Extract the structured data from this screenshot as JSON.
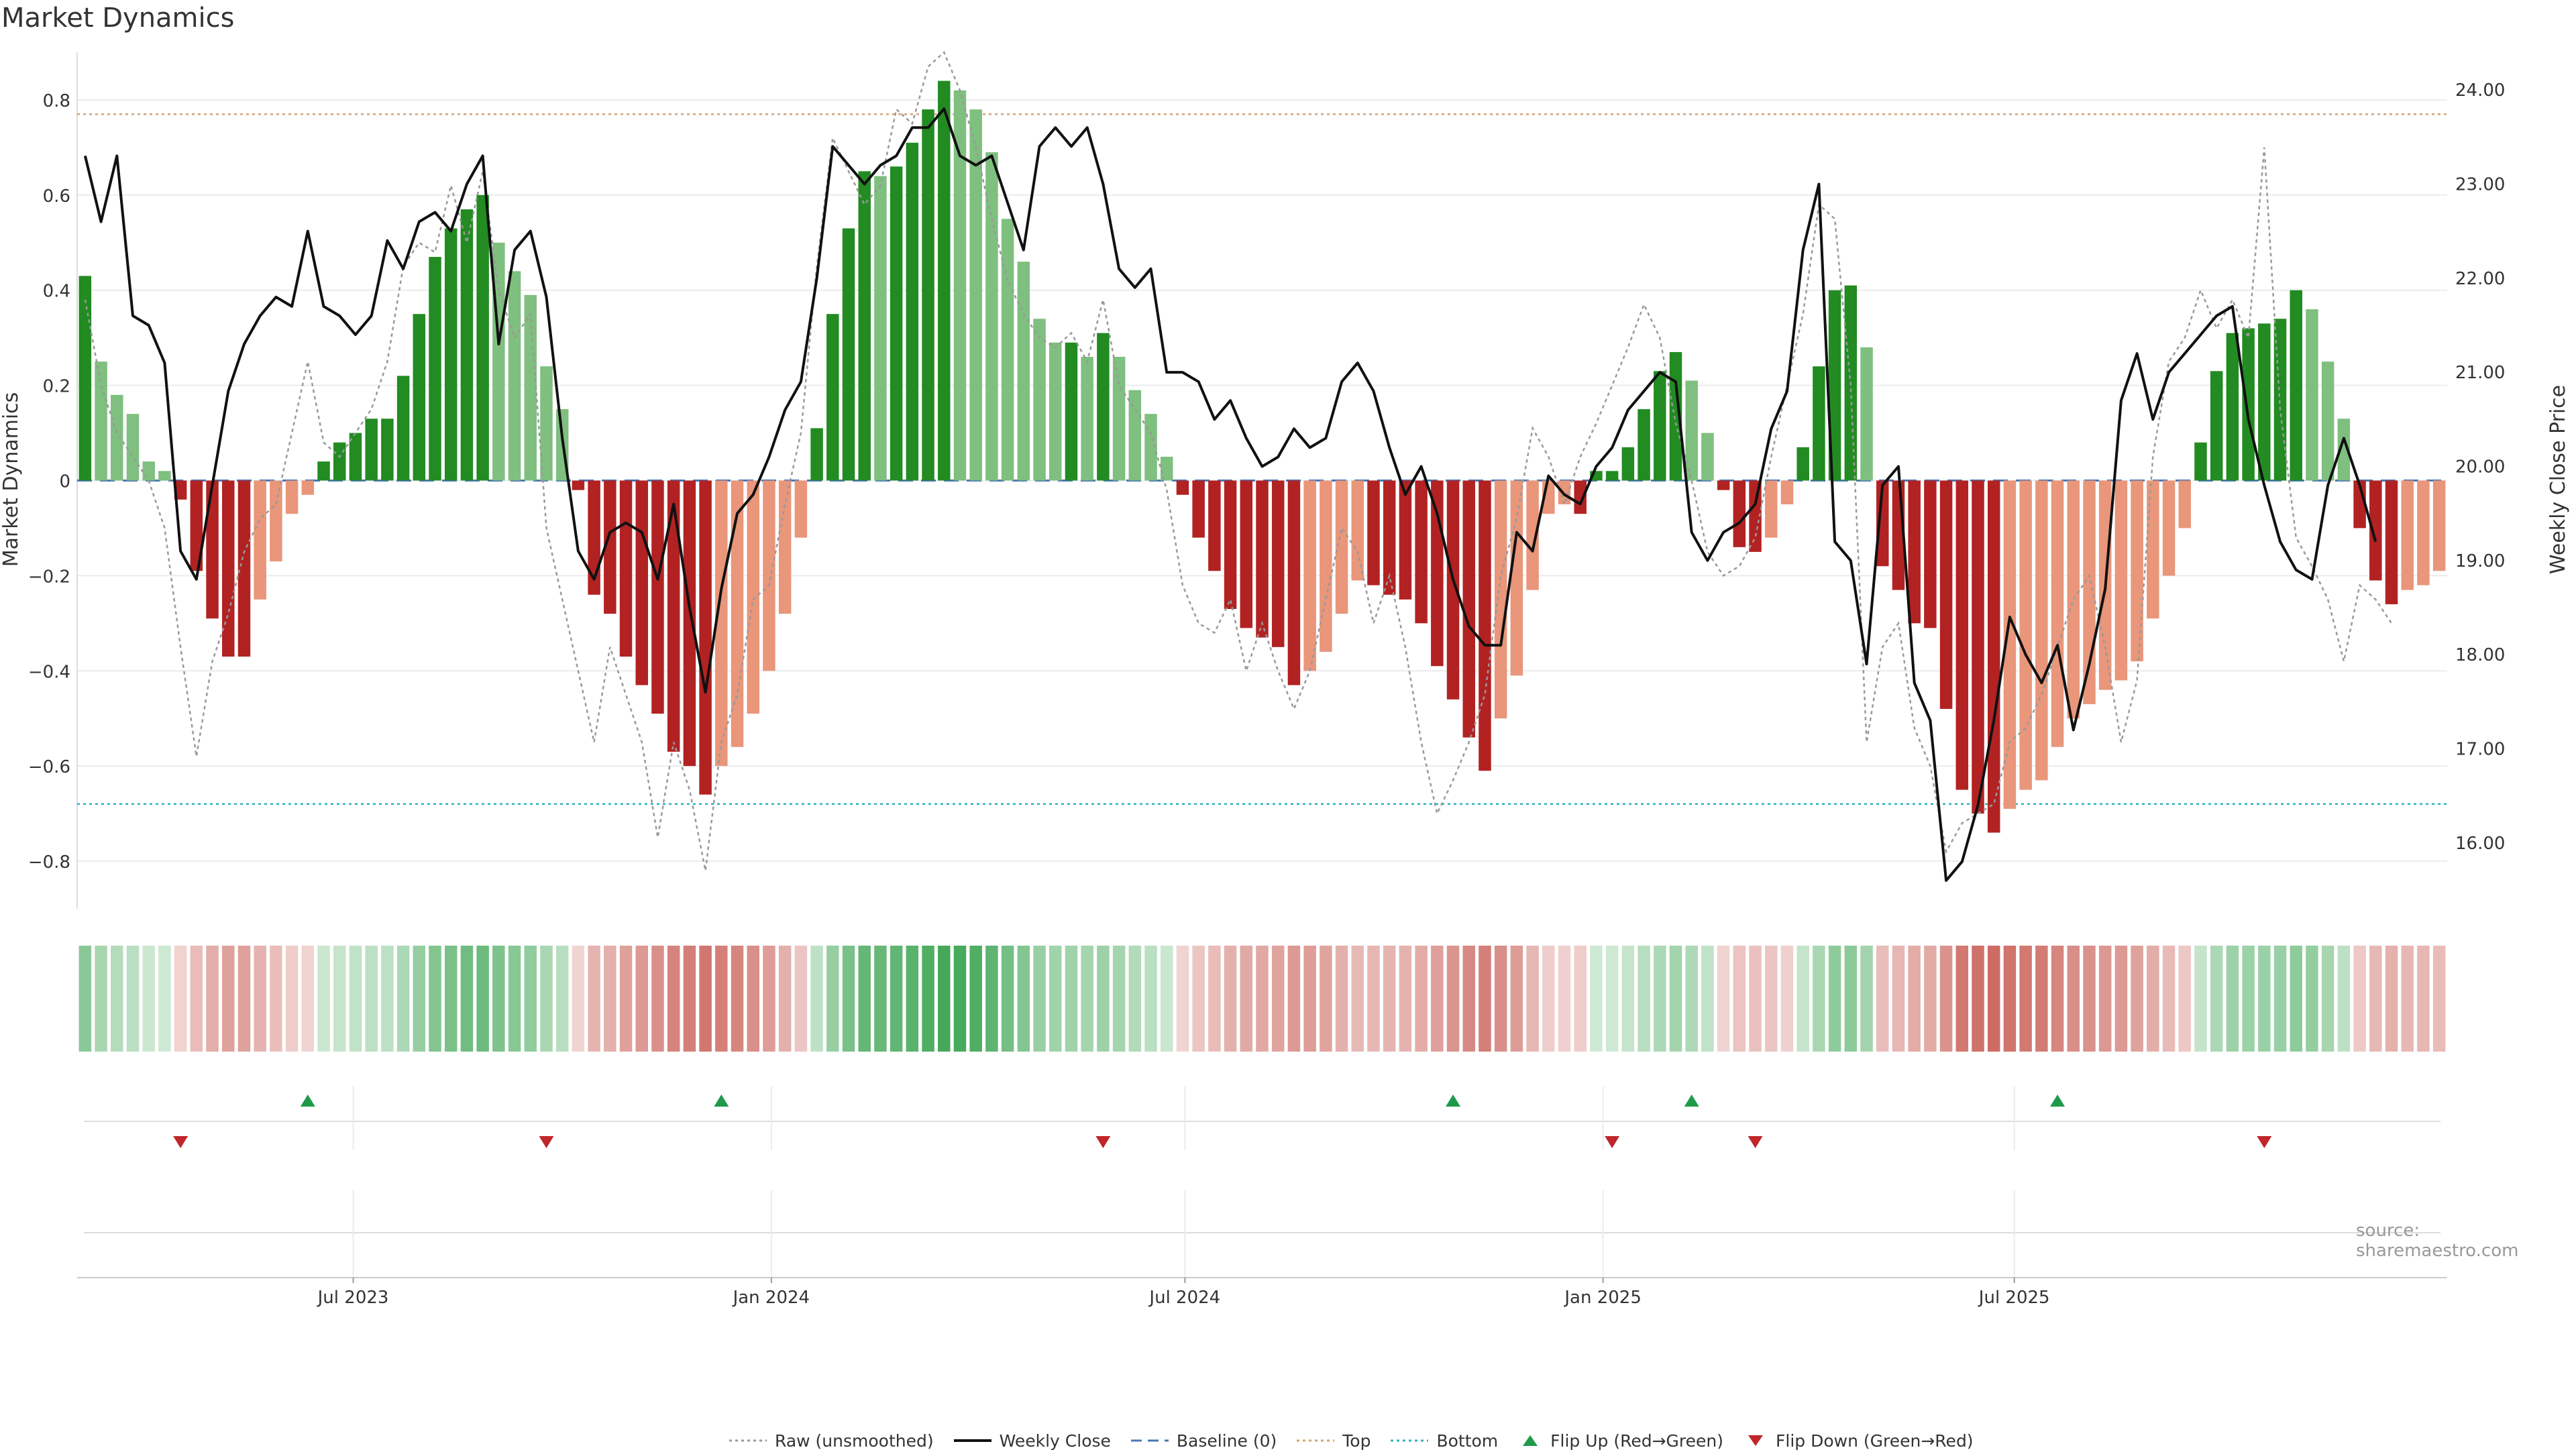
{
  "title": "Market Dynamics",
  "source": "source: sharemaestro.com",
  "chart_data": {
    "type": "bar",
    "ylabel_left": "Market Dynamics",
    "ylabel_right": "Weekly Close Price",
    "ylim_left": [
      -0.9,
      0.9
    ],
    "ylim_right": [
      15.3,
      24.4
    ],
    "yticks_left": [
      "0.8",
      "0.6",
      "0.4",
      "0.2",
      "0",
      "−0.2",
      "−0.4",
      "−0.6",
      "−0.8"
    ],
    "yticks_left_values": [
      0.8,
      0.6,
      0.4,
      0.2,
      0,
      -0.2,
      -0.4,
      -0.6,
      -0.8
    ],
    "yticks_right": [
      "24.00",
      "23.00",
      "22.00",
      "21.00",
      "20.00",
      "19.00",
      "18.00",
      "17.00",
      "16.00"
    ],
    "yticks_right_values": [
      24,
      23,
      22,
      21,
      20,
      19,
      18,
      17,
      16
    ],
    "top_line": 0.77,
    "bottom_line": -0.68,
    "baseline": 0,
    "x_start": "2023-03-05",
    "week_days": 7,
    "x_ticks": [
      {
        "label": "Jul 2023",
        "date": "2023-07-01"
      },
      {
        "label": "Jan 2024",
        "date": "2024-01-01"
      },
      {
        "label": "Jul 2024",
        "date": "2024-07-01"
      },
      {
        "label": "Jan 2025",
        "date": "2025-01-01"
      },
      {
        "label": "Jul 2025",
        "date": "2025-07-01"
      }
    ],
    "market_dynamics": [
      0.43,
      0.25,
      0.18,
      0.14,
      0.04,
      0.02,
      -0.04,
      -0.19,
      -0.29,
      -0.37,
      -0.37,
      -0.25,
      -0.17,
      -0.07,
      -0.03,
      0.04,
      0.08,
      0.1,
      0.13,
      0.13,
      0.22,
      0.35,
      0.47,
      0.53,
      0.57,
      0.6,
      0.5,
      0.44,
      0.39,
      0.24,
      0.15,
      -0.02,
      -0.24,
      -0.28,
      -0.37,
      -0.43,
      -0.49,
      -0.57,
      -0.6,
      -0.66,
      -0.6,
      -0.56,
      -0.49,
      -0.4,
      -0.28,
      -0.12,
      0.11,
      0.35,
      0.53,
      0.65,
      0.64,
      0.66,
      0.71,
      0.78,
      0.84,
      0.82,
      0.78,
      0.69,
      0.55,
      0.46,
      0.34,
      0.29,
      0.29,
      0.26,
      0.31,
      0.26,
      0.19,
      0.14,
      0.05,
      -0.03,
      -0.12,
      -0.19,
      -0.27,
      -0.31,
      -0.33,
      -0.35,
      -0.43,
      -0.4,
      -0.36,
      -0.28,
      -0.21,
      -0.22,
      -0.24,
      -0.25,
      -0.3,
      -0.39,
      -0.46,
      -0.54,
      -0.61,
      -0.5,
      -0.41,
      -0.23,
      -0.07,
      -0.05,
      -0.07,
      0.02,
      0.02,
      0.07,
      0.15,
      0.23,
      0.27,
      0.21,
      0.1,
      -0.02,
      -0.14,
      -0.15,
      -0.12,
      -0.05,
      0.07,
      0.24,
      0.4,
      0.41,
      0.28,
      -0.18,
      -0.23,
      -0.3,
      -0.31,
      -0.48,
      -0.65,
      -0.7,
      -0.74,
      -0.69,
      -0.65,
      -0.63,
      -0.56,
      -0.5,
      -0.47,
      -0.44,
      -0.42,
      -0.38,
      -0.29,
      -0.2,
      -0.1,
      0.08,
      0.23,
      0.31,
      0.32,
      0.33,
      0.34,
      0.4,
      0.36,
      0.25,
      0.13,
      -0.1,
      -0.21,
      -0.26,
      -0.23,
      -0.22,
      -0.19
    ],
    "raw_unsmoothed": [
      0.38,
      0.2,
      0.1,
      0.05,
      0.0,
      -0.1,
      -0.35,
      -0.58,
      -0.38,
      -0.28,
      -0.15,
      -0.08,
      -0.05,
      0.1,
      0.25,
      0.08,
      0.05,
      0.1,
      0.15,
      0.25,
      0.45,
      0.5,
      0.48,
      0.62,
      0.5,
      0.65,
      0.4,
      0.3,
      0.35,
      -0.1,
      -0.25,
      -0.4,
      -0.55,
      -0.35,
      -0.45,
      -0.55,
      -0.75,
      -0.55,
      -0.65,
      -0.82,
      -0.55,
      -0.45,
      -0.25,
      -0.22,
      -0.05,
      0.1,
      0.45,
      0.72,
      0.65,
      0.58,
      0.62,
      0.78,
      0.75,
      0.87,
      0.9,
      0.82,
      0.7,
      0.55,
      0.42,
      0.35,
      0.3,
      0.28,
      0.31,
      0.25,
      0.38,
      0.2,
      0.15,
      0.1,
      -0.02,
      -0.22,
      -0.3,
      -0.32,
      -0.25,
      -0.4,
      -0.3,
      -0.4,
      -0.48,
      -0.4,
      -0.25,
      -0.1,
      -0.15,
      -0.3,
      -0.2,
      -0.35,
      -0.55,
      -0.7,
      -0.63,
      -0.55,
      -0.45,
      -0.2,
      -0.08,
      0.11,
      0.05,
      -0.05,
      0.05,
      0.12,
      0.2,
      0.28,
      0.37,
      0.3,
      0.12,
      0.0,
      -0.15,
      -0.2,
      -0.18,
      -0.12,
      0.05,
      0.2,
      0.35,
      0.58,
      0.55,
      0.2,
      -0.55,
      -0.35,
      -0.3,
      -0.52,
      -0.6,
      -0.78,
      -0.72,
      -0.7,
      -0.68,
      -0.55,
      -0.52,
      -0.45,
      -0.35,
      -0.25,
      -0.2,
      -0.35,
      -0.55,
      -0.42,
      0.05,
      0.25,
      0.3,
      0.4,
      0.32,
      0.38,
      0.3,
      0.7,
      0.15,
      -0.12,
      -0.18,
      -0.25,
      -0.38,
      -0.22,
      -0.25,
      -0.3
    ],
    "weekly_close": [
      23.3,
      22.6,
      23.3,
      21.6,
      21.5,
      21.1,
      19.1,
      18.8,
      19.8,
      20.8,
      21.3,
      21.6,
      21.8,
      21.7,
      22.5,
      21.7,
      21.6,
      21.4,
      21.6,
      22.4,
      22.1,
      22.6,
      22.7,
      22.5,
      23.0,
      23.3,
      21.3,
      22.3,
      22.5,
      21.8,
      20.3,
      19.1,
      18.8,
      19.3,
      19.4,
      19.3,
      18.8,
      19.6,
      18.5,
      17.6,
      18.7,
      19.5,
      19.7,
      20.1,
      20.6,
      20.9,
      22.0,
      23.4,
      23.2,
      23.0,
      23.2,
      23.3,
      23.6,
      23.6,
      23.8,
      23.3,
      23.2,
      23.3,
      22.8,
      22.3,
      23.4,
      23.6,
      23.4,
      23.6,
      23.0,
      22.1,
      21.9,
      22.1,
      21.0,
      21.0,
      20.9,
      20.5,
      20.7,
      20.3,
      20.0,
      20.1,
      20.4,
      20.2,
      20.3,
      20.9,
      21.1,
      20.8,
      20.2,
      19.7,
      20.0,
      19.5,
      18.8,
      18.3,
      18.1,
      18.1,
      19.3,
      19.1,
      19.9,
      19.7,
      19.6,
      20.0,
      20.2,
      20.6,
      20.8,
      21.0,
      20.9,
      19.3,
      19.0,
      19.3,
      19.4,
      19.6,
      20.4,
      20.8,
      22.3,
      23.0,
      19.2,
      19.0,
      17.9,
      19.8,
      20.0,
      17.7,
      17.3,
      15.6,
      15.8,
      16.4,
      17.3,
      18.4,
      18.0,
      17.7,
      18.1,
      17.2,
      17.9,
      18.7,
      20.7,
      21.2,
      20.5,
      21.0,
      21.2,
      21.4,
      21.6,
      21.7,
      20.5,
      19.8,
      19.2,
      18.9,
      18.8,
      19.8,
      20.3,
      19.8,
      19.2
    ],
    "flip_up": [
      "2023-06-11",
      "2023-12-10",
      "2024-10-27",
      "2025-02-09",
      "2025-07-20"
    ],
    "flip_down": [
      "2023-04-16",
      "2023-09-24",
      "2024-05-26",
      "2025-01-05",
      "2025-03-09",
      "2025-10-19"
    ],
    "legend": [
      {
        "label": "Raw (unsmoothed)",
        "style": "dotted",
        "color": "#999999"
      },
      {
        "label": "Weekly Close",
        "style": "solid",
        "color": "#111111"
      },
      {
        "label": "Baseline (0)",
        "style": "dashed",
        "color": "#4a77b4"
      },
      {
        "label": "Top",
        "style": "dotted",
        "color": "#d4a373"
      },
      {
        "label": "Bottom",
        "style": "dotted",
        "color": "#2bb3c0"
      },
      {
        "label": "Flip Up (Red→Green)",
        "style": "triangle-up",
        "color": "#1f9a4a"
      },
      {
        "label": "Flip Down (Green→Red)",
        "style": "triangle-down",
        "color": "#c0262a"
      }
    ],
    "colors": {
      "bull_strong": "#228b22",
      "bull_weak": "#7fbf7f",
      "bear_strong": "#b22222",
      "bear_weak": "#e9967a",
      "strip_green": "#2e9e45",
      "strip_red": "#c24a40"
    }
  }
}
